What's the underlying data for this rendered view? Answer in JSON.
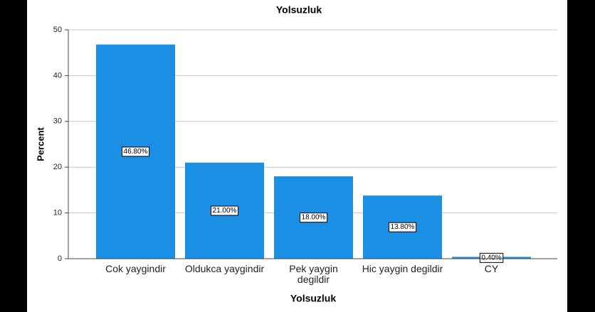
{
  "chart_data": {
    "type": "bar",
    "title": "Yolsuzluk",
    "x_label": "Yolsuzluk",
    "y_label": "Percent",
    "categories": [
      "Cok yaygindir",
      "Oldukca yaygindir",
      "Pek yaygin\ndegildir",
      "Hic yaygin degildir",
      "CY"
    ],
    "values": [
      46.8,
      21.0,
      18.0,
      13.8,
      0.4
    ],
    "value_labels": [
      "46.80%",
      "21.00%",
      "18.00%",
      "13.80%",
      "0.40%"
    ],
    "color": "#1a8fe3",
    "ylim": [
      0,
      50
    ],
    "yticks": [
      0,
      10,
      20,
      30,
      40,
      50
    ],
    "grid": true
  }
}
